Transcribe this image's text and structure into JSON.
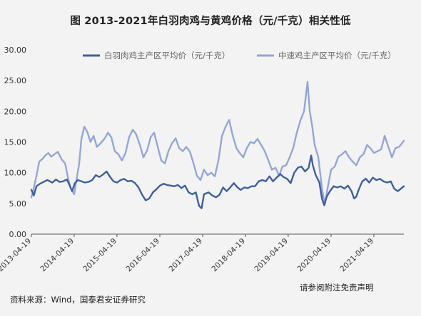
{
  "chart_data": {
    "type": "line",
    "title": "图 2013-2021年白羽肉鸡与黄鸡价格（元/千克）相关性低",
    "xlabel": "",
    "ylabel": "",
    "ylim": [
      0,
      30
    ],
    "y_ticks": [
      "0.00",
      "5.00",
      "10.00",
      "15.00",
      "20.00",
      "25.00",
      "30.00"
    ],
    "x_range": [
      "2013-04-19",
      "2021-12-31"
    ],
    "x_ticks": [
      "2013-04-19",
      "2014-04-19",
      "2015-04-19",
      "2016-04-19",
      "2017-04-19",
      "2018-04-19",
      "2019-04-19",
      "2020-04-19",
      "2021-04-19"
    ],
    "grid": false,
    "legend_position": "top",
    "series": [
      {
        "name": "白羽肉鸡主产区平均价（元/千克）",
        "color": "#3f5f9f",
        "points": [
          [
            "2013-04-19",
            7.2
          ],
          [
            "2013-05-10",
            6.3
          ],
          [
            "2013-06-01",
            7.8
          ],
          [
            "2013-07-01",
            8.2
          ],
          [
            "2013-08-01",
            8.5
          ],
          [
            "2013-09-01",
            8.8
          ],
          [
            "2013-10-15",
            8.4
          ],
          [
            "2013-11-15",
            8.9
          ],
          [
            "2013-12-15",
            8.5
          ],
          [
            "2014-01-15",
            8.6
          ],
          [
            "2014-02-15",
            8.9
          ],
          [
            "2014-03-10",
            8.0
          ],
          [
            "2014-04-01",
            7.0
          ],
          [
            "2014-04-25",
            8.3
          ],
          [
            "2014-05-20",
            8.8
          ],
          [
            "2014-06-20",
            8.6
          ],
          [
            "2014-07-20",
            8.4
          ],
          [
            "2014-08-20",
            8.5
          ],
          [
            "2014-09-20",
            8.8
          ],
          [
            "2014-10-20",
            9.6
          ],
          [
            "2014-11-20",
            9.3
          ],
          [
            "2014-12-20",
            9.7
          ],
          [
            "2015-01-20",
            10.2
          ],
          [
            "2015-02-20",
            9.3
          ],
          [
            "2015-03-20",
            8.6
          ],
          [
            "2015-04-20",
            8.4
          ],
          [
            "2015-05-20",
            8.8
          ],
          [
            "2015-06-20",
            9.0
          ],
          [
            "2015-07-20",
            8.6
          ],
          [
            "2015-08-20",
            8.7
          ],
          [
            "2015-09-20",
            8.3
          ],
          [
            "2015-10-20",
            7.6
          ],
          [
            "2015-11-20",
            6.4
          ],
          [
            "2015-12-20",
            5.5
          ],
          [
            "2016-01-20",
            5.8
          ],
          [
            "2016-02-20",
            6.8
          ],
          [
            "2016-03-20",
            7.3
          ],
          [
            "2016-04-20",
            7.9
          ],
          [
            "2016-05-20",
            8.2
          ],
          [
            "2016-06-20",
            8.0
          ],
          [
            "2016-07-20",
            7.9
          ],
          [
            "2016-08-20",
            7.8
          ],
          [
            "2016-09-20",
            8.0
          ],
          [
            "2016-10-20",
            7.5
          ],
          [
            "2016-11-20",
            7.9
          ],
          [
            "2016-12-20",
            6.8
          ],
          [
            "2017-01-20",
            6.5
          ],
          [
            "2017-02-20",
            6.8
          ],
          [
            "2017-03-20",
            4.6
          ],
          [
            "2017-04-10",
            4.2
          ],
          [
            "2017-05-01",
            6.5
          ],
          [
            "2017-06-10",
            6.8
          ],
          [
            "2017-07-10",
            6.3
          ],
          [
            "2017-08-10",
            6.0
          ],
          [
            "2017-09-10",
            6.4
          ],
          [
            "2017-10-10",
            7.6
          ],
          [
            "2017-11-10",
            7.0
          ],
          [
            "2017-12-10",
            7.6
          ],
          [
            "2018-01-10",
            8.3
          ],
          [
            "2018-02-10",
            7.6
          ],
          [
            "2018-03-10",
            7.2
          ],
          [
            "2018-04-10",
            7.6
          ],
          [
            "2018-05-10",
            7.5
          ],
          [
            "2018-06-10",
            7.8
          ],
          [
            "2018-07-10",
            7.8
          ],
          [
            "2018-08-10",
            8.6
          ],
          [
            "2018-09-10",
            8.8
          ],
          [
            "2018-10-10",
            8.6
          ],
          [
            "2018-11-10",
            9.4
          ],
          [
            "2018-12-10",
            8.6
          ],
          [
            "2019-01-10",
            9.2
          ],
          [
            "2019-02-10",
            9.8
          ],
          [
            "2019-03-10",
            9.3
          ],
          [
            "2019-04-10",
            9.0
          ],
          [
            "2019-05-10",
            8.3
          ],
          [
            "2019-06-10",
            10.0
          ],
          [
            "2019-07-10",
            10.8
          ],
          [
            "2019-08-10",
            11.0
          ],
          [
            "2019-09-10",
            10.2
          ],
          [
            "2019-10-10",
            10.8
          ],
          [
            "2019-11-01",
            12.8
          ],
          [
            "2019-11-15",
            11.2
          ],
          [
            "2019-12-10",
            9.6
          ],
          [
            "2020-01-10",
            8.4
          ],
          [
            "2020-02-01",
            5.8
          ],
          [
            "2020-02-20",
            4.7
          ],
          [
            "2020-03-15",
            6.2
          ],
          [
            "2020-04-10",
            7.0
          ],
          [
            "2020-05-10",
            7.8
          ],
          [
            "2020-06-10",
            7.6
          ],
          [
            "2020-07-10",
            7.8
          ],
          [
            "2020-08-10",
            7.4
          ],
          [
            "2020-09-10",
            7.9
          ],
          [
            "2020-10-10",
            7.0
          ],
          [
            "2020-11-01",
            5.8
          ],
          [
            "2020-11-20",
            6.1
          ],
          [
            "2020-12-10",
            7.2
          ],
          [
            "2021-01-10",
            8.6
          ],
          [
            "2021-02-10",
            9.0
          ],
          [
            "2021-03-10",
            8.4
          ],
          [
            "2021-04-10",
            9.2
          ],
          [
            "2021-05-10",
            8.8
          ],
          [
            "2021-06-10",
            9.0
          ],
          [
            "2021-07-10",
            8.6
          ],
          [
            "2021-08-10",
            8.4
          ],
          [
            "2021-09-10",
            8.6
          ],
          [
            "2021-10-10",
            7.4
          ],
          [
            "2021-11-10",
            7.0
          ],
          [
            "2021-12-31",
            7.8
          ]
        ]
      },
      {
        "name": "中速鸡主产区平均价（元/千克）",
        "color": "#93a6d6",
        "points": [
          [
            "2013-04-19",
            6.0
          ],
          [
            "2013-05-10",
            7.5
          ],
          [
            "2013-06-01",
            9.5
          ],
          [
            "2013-06-25",
            11.8
          ],
          [
            "2013-07-20",
            12.2
          ],
          [
            "2013-08-15",
            12.8
          ],
          [
            "2013-09-10",
            13.2
          ],
          [
            "2013-10-05",
            12.6
          ],
          [
            "2013-11-01",
            13.0
          ],
          [
            "2013-12-01",
            13.4
          ],
          [
            "2014-01-01",
            12.2
          ],
          [
            "2014-02-01",
            11.5
          ],
          [
            "2014-02-25",
            9.2
          ],
          [
            "2014-03-20",
            7.5
          ],
          [
            "2014-04-19",
            6.5
          ],
          [
            "2014-05-10",
            9.0
          ],
          [
            "2014-06-01",
            11.5
          ],
          [
            "2014-06-20",
            15.5
          ],
          [
            "2014-07-15",
            17.5
          ],
          [
            "2014-08-10",
            16.6
          ],
          [
            "2014-09-05",
            15.0
          ],
          [
            "2014-10-01",
            16.0
          ],
          [
            "2014-10-30",
            14.2
          ],
          [
            "2014-12-01",
            14.8
          ],
          [
            "2015-01-01",
            15.5
          ],
          [
            "2015-02-01",
            16.5
          ],
          [
            "2015-03-01",
            15.8
          ],
          [
            "2015-04-01",
            13.5
          ],
          [
            "2015-05-01",
            13.0
          ],
          [
            "2015-06-01",
            12.0
          ],
          [
            "2015-07-01",
            13.2
          ],
          [
            "2015-08-01",
            15.8
          ],
          [
            "2015-09-01",
            17.0
          ],
          [
            "2015-10-01",
            16.2
          ],
          [
            "2015-11-01",
            14.5
          ],
          [
            "2015-12-01",
            12.5
          ],
          [
            "2016-01-01",
            13.6
          ],
          [
            "2016-02-01",
            15.8
          ],
          [
            "2016-03-01",
            16.5
          ],
          [
            "2016-04-01",
            14.2
          ],
          [
            "2016-05-01",
            12.0
          ],
          [
            "2016-06-01",
            11.5
          ],
          [
            "2016-07-01",
            13.5
          ],
          [
            "2016-08-01",
            14.8
          ],
          [
            "2016-09-01",
            15.6
          ],
          [
            "2016-10-01",
            14.0
          ],
          [
            "2016-11-01",
            13.5
          ],
          [
            "2016-12-01",
            14.2
          ],
          [
            "2017-01-01",
            13.4
          ],
          [
            "2017-02-01",
            11.5
          ],
          [
            "2017-03-01",
            9.5
          ],
          [
            "2017-04-01",
            8.8
          ],
          [
            "2017-05-01",
            10.5
          ],
          [
            "2017-06-01",
            9.6
          ],
          [
            "2017-07-01",
            10.0
          ],
          [
            "2017-08-01",
            9.4
          ],
          [
            "2017-09-01",
            12.0
          ],
          [
            "2017-10-01",
            16.0
          ],
          [
            "2017-11-01",
            17.5
          ],
          [
            "2017-12-01",
            18.6
          ],
          [
            "2018-01-01",
            16.0
          ],
          [
            "2018-02-01",
            14.0
          ],
          [
            "2018-03-01",
            13.2
          ],
          [
            "2018-04-01",
            12.5
          ],
          [
            "2018-05-01",
            14.0
          ],
          [
            "2018-06-01",
            15.0
          ],
          [
            "2018-07-01",
            14.8
          ],
          [
            "2018-08-01",
            15.5
          ],
          [
            "2018-09-01",
            14.5
          ],
          [
            "2018-10-01",
            13.5
          ],
          [
            "2018-11-01",
            12.0
          ],
          [
            "2018-12-01",
            10.5
          ],
          [
            "2019-01-01",
            10.8
          ],
          [
            "2019-02-01",
            9.5
          ],
          [
            "2019-03-01",
            11.0
          ],
          [
            "2019-04-01",
            11.2
          ],
          [
            "2019-05-01",
            12.5
          ],
          [
            "2019-06-01",
            14.0
          ],
          [
            "2019-07-01",
            16.5
          ],
          [
            "2019-08-01",
            18.5
          ],
          [
            "2019-09-01",
            20.0
          ],
          [
            "2019-10-01",
            24.8
          ],
          [
            "2019-10-20",
            20.0
          ],
          [
            "2019-11-10",
            17.5
          ],
          [
            "2019-12-01",
            14.5
          ],
          [
            "2020-01-01",
            12.5
          ],
          [
            "2020-02-01",
            7.5
          ],
          [
            "2020-02-25",
            4.8
          ],
          [
            "2020-03-20",
            7.5
          ],
          [
            "2020-04-19",
            10.5
          ],
          [
            "2020-05-20",
            11.0
          ],
          [
            "2020-06-20",
            12.6
          ],
          [
            "2020-07-20",
            13.0
          ],
          [
            "2020-08-20",
            13.5
          ],
          [
            "2020-09-20",
            12.5
          ],
          [
            "2020-10-20",
            11.8
          ],
          [
            "2020-11-20",
            11.2
          ],
          [
            "2020-12-20",
            12.5
          ],
          [
            "2021-01-20",
            13.0
          ],
          [
            "2021-02-20",
            14.5
          ],
          [
            "2021-03-20",
            14.0
          ],
          [
            "2021-04-20",
            13.2
          ],
          [
            "2021-05-20",
            13.5
          ],
          [
            "2021-06-20",
            13.8
          ],
          [
            "2021-07-20",
            16.0
          ],
          [
            "2021-08-20",
            14.2
          ],
          [
            "2021-09-20",
            12.5
          ],
          [
            "2021-10-20",
            14.0
          ],
          [
            "2021-11-20",
            14.2
          ],
          [
            "2021-12-31",
            15.2
          ]
        ]
      }
    ]
  },
  "notes": {
    "disclaimer": "请参阅附注免责声明",
    "source": "资料来源：Wind，国泰君安证券研究"
  }
}
